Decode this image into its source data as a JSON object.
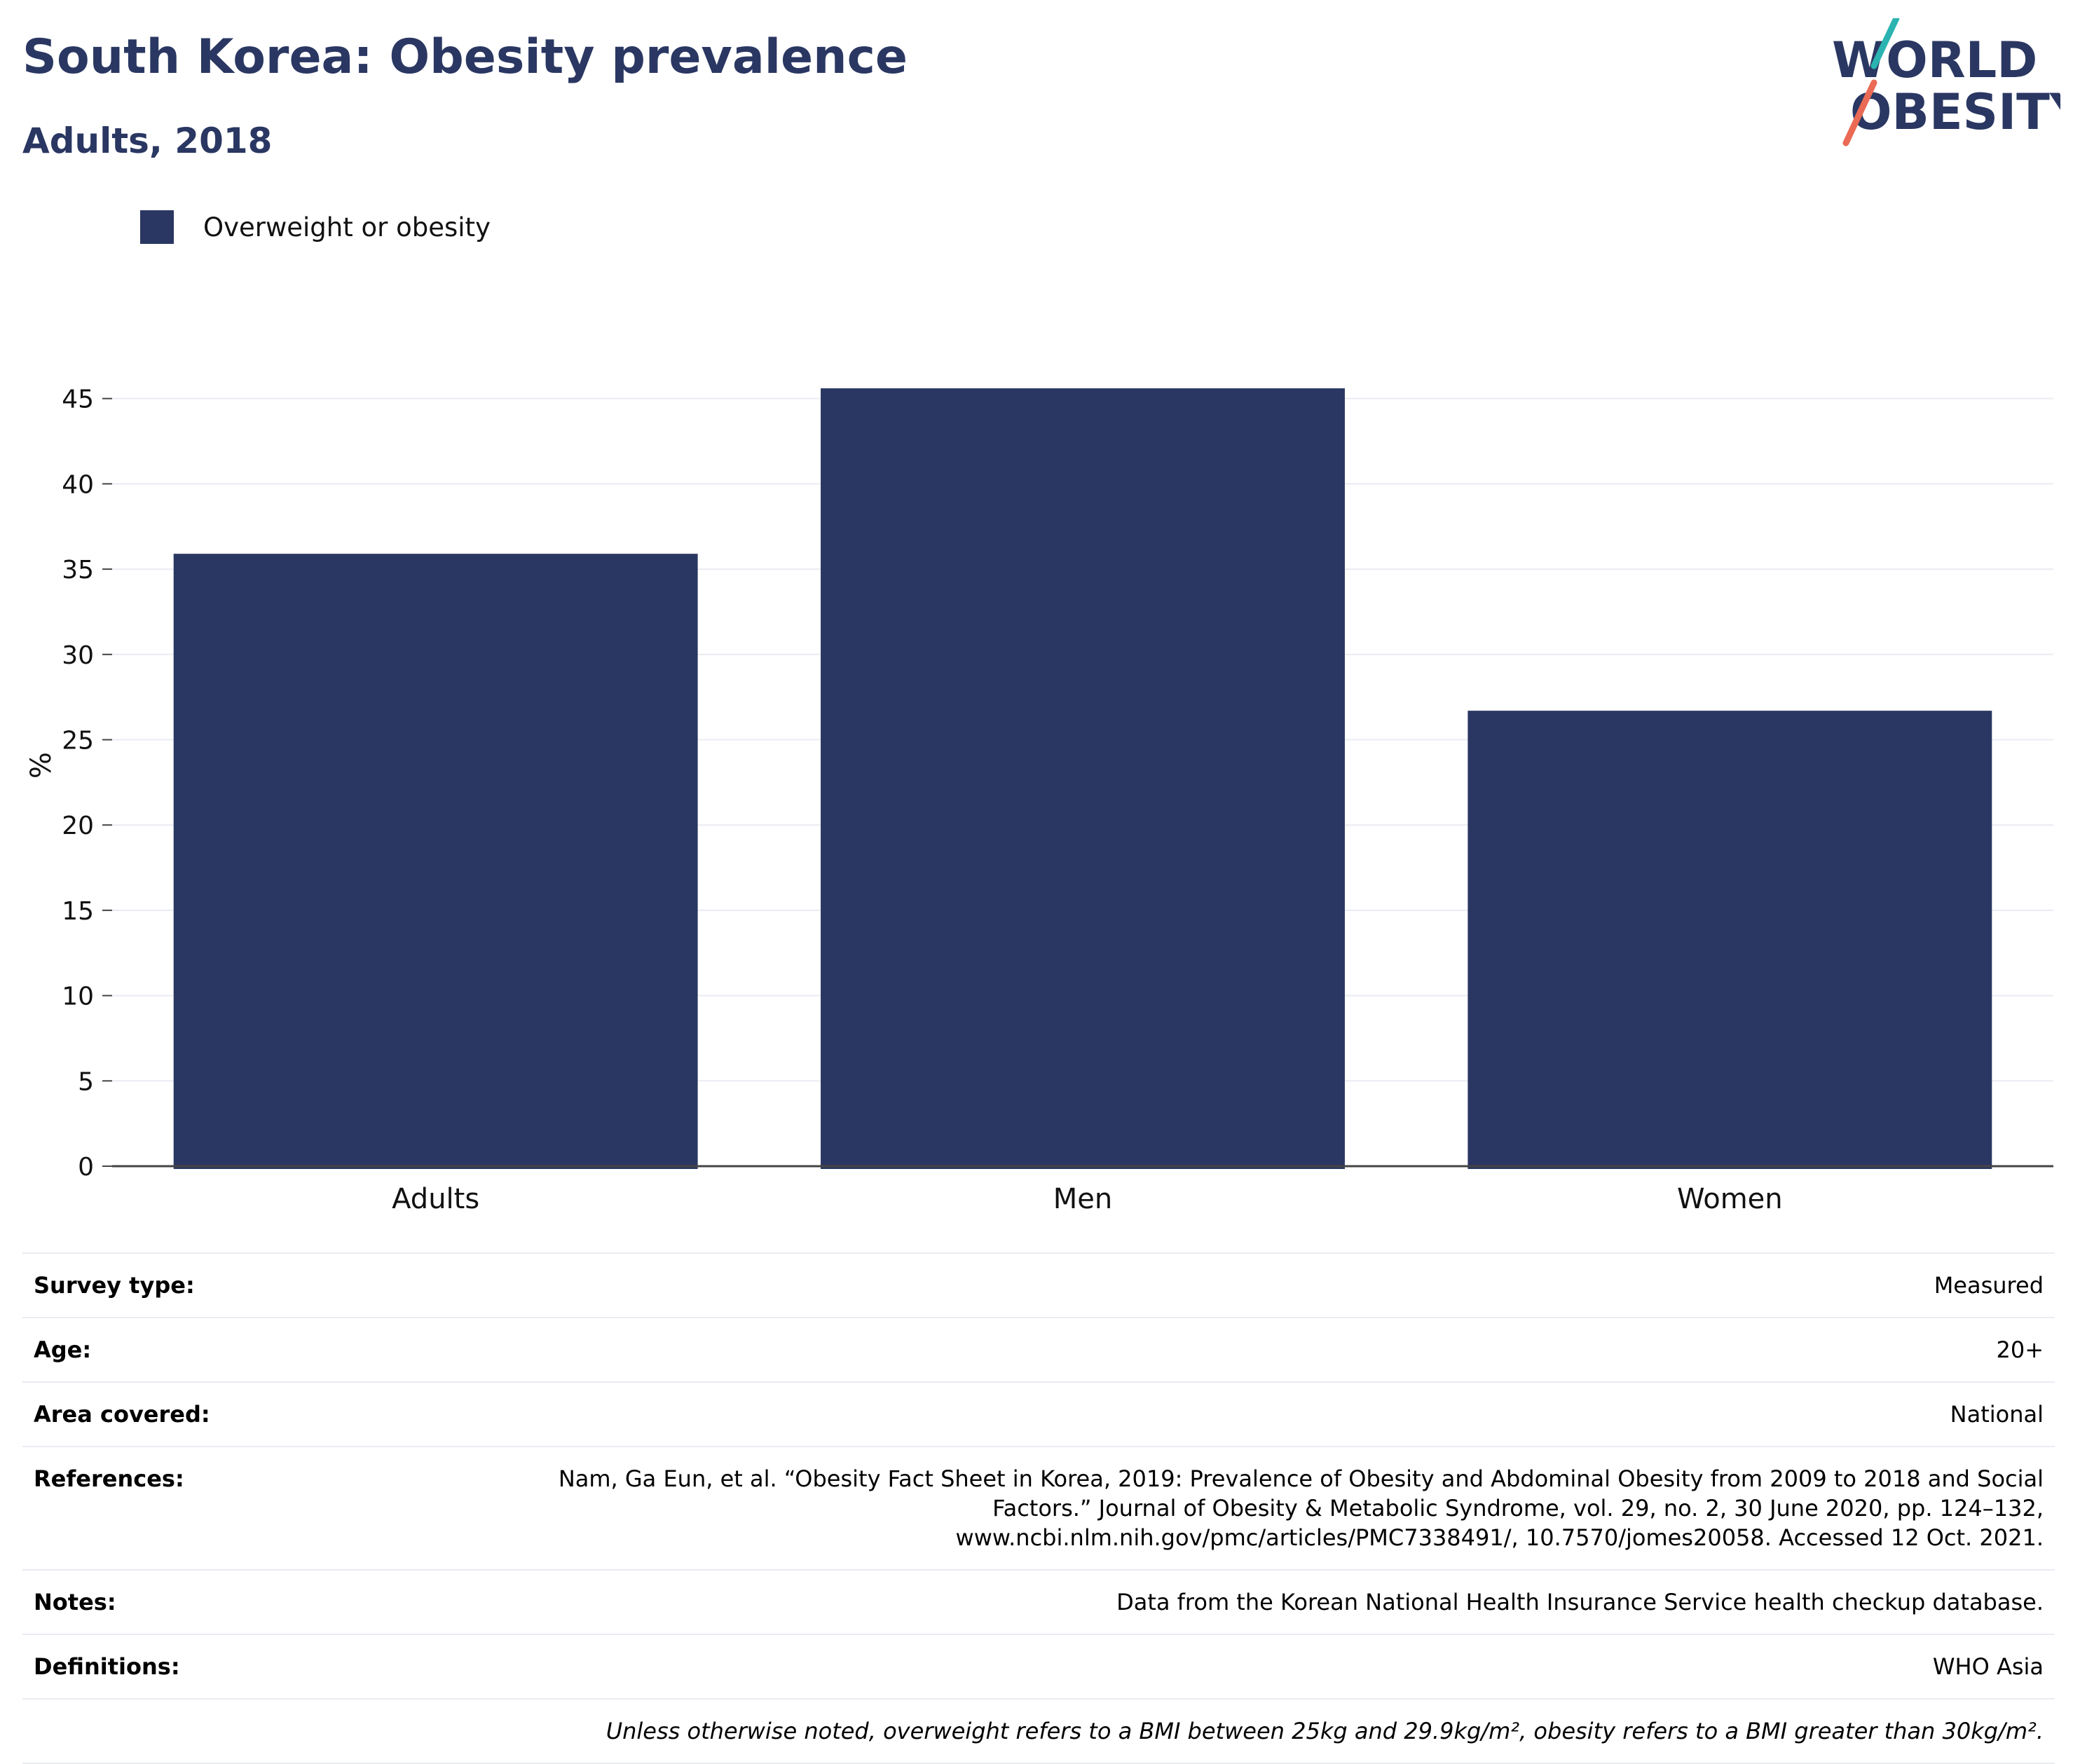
{
  "header": {
    "title": "South Korea: Obesity prevalence",
    "subtitle": "Adults, 2018"
  },
  "logo": {
    "line1": "WORLD",
    "line2": "OBESITY",
    "text_color": "#2a3762",
    "accent_teal": "#2bb3b1",
    "accent_coral": "#ea6a55"
  },
  "legend": {
    "label": "Overweight or obesity",
    "color": "#2a3762"
  },
  "chart_data": {
    "type": "bar",
    "categories": [
      "Adults",
      "Men",
      "Women"
    ],
    "series": [
      {
        "name": "Overweight or obesity",
        "values": [
          35.9,
          45.6,
          26.7
        ]
      }
    ],
    "title": "South Korea: Obesity prevalence",
    "subtitle": "Adults, 2018",
    "xlabel": "",
    "ylabel": "%",
    "ylim": [
      0,
      47
    ],
    "yticks": [
      0,
      5,
      10,
      15,
      20,
      25,
      30,
      35,
      40,
      45
    ],
    "grid": true,
    "legend_position": "top-left",
    "bar_color": "#2a3762",
    "grid_color": "#eaecf2",
    "axis_color": "#444444"
  },
  "info": {
    "rows": [
      {
        "label": "Survey type:",
        "value": [
          "Measured"
        ]
      },
      {
        "label": "Age:",
        "value": [
          "20+"
        ]
      },
      {
        "label": "Area covered:",
        "value": [
          "National"
        ]
      },
      {
        "label": "References:",
        "value": [
          "Nam, Ga Eun, et al. “Obesity Fact Sheet in Korea, 2019: Prevalence of Obesity and Abdominal Obesity from 2009 to 2018 and Social",
          "Factors.” Journal of Obesity & Metabolic Syndrome, vol. 29, no. 2, 30 June 2020, pp. 124–132,",
          "www.ncbi.nlm.nih.gov/pmc/articles/PMC7338491/, 10.7570/jomes20058. Accessed 12 Oct. 2021."
        ]
      },
      {
        "label": "Notes:",
        "value": [
          "Data from the Korean National Health Insurance Service health checkup database."
        ]
      },
      {
        "label": "Definitions:",
        "value": [
          "WHO Asia"
        ]
      }
    ],
    "footnote": "Unless otherwise noted, overweight refers to a BMI between 25kg and 29.9kg/m², obesity refers to a BMI greater than 30kg/m²."
  }
}
